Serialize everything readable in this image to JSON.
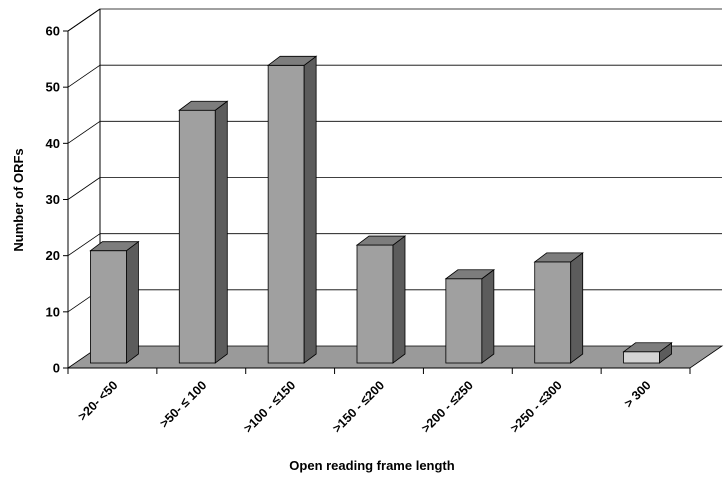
{
  "chart_data": {
    "type": "bar",
    "title": "",
    "xlabel": "Open reading frame length",
    "ylabel": "Number of ORFs",
    "categories": [
      ">20- <50",
      ">50- ≤ 100",
      ">100 - ≤150",
      ">150 - ≤200",
      ">200 - ≤250",
      ">250 - ≤300",
      "> 300"
    ],
    "values": [
      20,
      45,
      53,
      21,
      15,
      18,
      2
    ],
    "ylim": [
      0,
      60
    ],
    "yticks": [
      0,
      10,
      20,
      30,
      40,
      50,
      60
    ],
    "grid": true,
    "legend": "none",
    "three_d": true,
    "colors": {
      "bar_front": "#a0a0a0",
      "bar_top": "#7d7d7d",
      "bar_side": "#5c5c5c",
      "last_bar_front": "#d4d4d4",
      "floor": "#9a9a9a",
      "grid": "#000000"
    }
  }
}
